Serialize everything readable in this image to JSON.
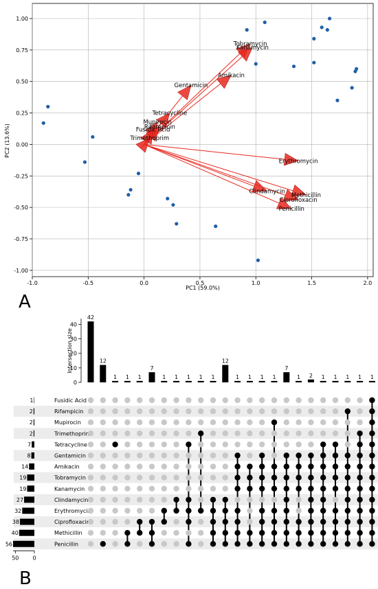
{
  "chart_data": [
    {
      "type": "scatter",
      "panel_label": "A",
      "xlabel": "PC1 (59.0%)",
      "ylabel": "PC2 (13.6%)",
      "xlim": [
        -1.0,
        2.05
      ],
      "ylim": [
        -1.05,
        1.12
      ],
      "xticks": [
        "-1.0",
        "-0.5",
        "0.0",
        "0.5",
        "1.0",
        "1.5",
        "2.0"
      ],
      "xtick_values": [
        -1.0,
        -0.5,
        0.0,
        0.5,
        1.0,
        1.5,
        2.0
      ],
      "yticks": [
        "-1.00",
        "-0.75",
        "-0.50",
        "-0.25",
        "0.00",
        "0.25",
        "0.50",
        "0.75",
        "1.00"
      ],
      "ytick_values": [
        -1.0,
        -0.75,
        -0.5,
        -0.25,
        0.0,
        0.25,
        0.5,
        0.75,
        1.0
      ],
      "grid": true,
      "point_color": "#1f5fa8",
      "arrow_color": "#e8281e",
      "points": [
        {
          "x": -0.9,
          "y": 0.17
        },
        {
          "x": -0.86,
          "y": 0.3
        },
        {
          "x": -0.53,
          "y": -0.14
        },
        {
          "x": -0.46,
          "y": 0.06
        },
        {
          "x": -0.14,
          "y": -0.4
        },
        {
          "x": -0.12,
          "y": -0.36
        },
        {
          "x": -0.05,
          "y": -0.23
        },
        {
          "x": 0.21,
          "y": -0.43
        },
        {
          "x": 0.26,
          "y": -0.48
        },
        {
          "x": 0.29,
          "y": -0.63
        },
        {
          "x": 0.64,
          "y": -0.65
        },
        {
          "x": 0.92,
          "y": 0.91
        },
        {
          "x": 1.0,
          "y": 0.64
        },
        {
          "x": 1.02,
          "y": -0.92
        },
        {
          "x": 1.08,
          "y": 0.97
        },
        {
          "x": 1.34,
          "y": 0.62
        },
        {
          "x": 1.52,
          "y": 0.84
        },
        {
          "x": 1.52,
          "y": 0.65
        },
        {
          "x": 1.59,
          "y": 0.93
        },
        {
          "x": 1.64,
          "y": 0.91
        },
        {
          "x": 1.66,
          "y": 1.0
        },
        {
          "x": 1.73,
          "y": 0.35
        },
        {
          "x": 1.86,
          "y": 0.45
        },
        {
          "x": 1.89,
          "y": 0.58
        },
        {
          "x": 1.9,
          "y": 0.6
        }
      ],
      "loadings": [
        {
          "name": "Tobramycin",
          "x": 0.95,
          "y": 0.8
        },
        {
          "name": "Kanamycin",
          "x": 0.97,
          "y": 0.77
        },
        {
          "name": "Amikacin",
          "x": 0.78,
          "y": 0.55
        },
        {
          "name": "Gentamicin",
          "x": 0.42,
          "y": 0.47
        },
        {
          "name": "Tetracycline",
          "x": 0.23,
          "y": 0.25
        },
        {
          "name": "Mupirocin",
          "x": 0.12,
          "y": 0.18
        },
        {
          "name": "Rifampicin",
          "x": 0.14,
          "y": 0.14
        },
        {
          "name": "Fusidic Acid",
          "x": 0.08,
          "y": 0.12
        },
        {
          "name": "Trimethoprim",
          "x": 0.05,
          "y": 0.05
        },
        {
          "name": "Erythromycin",
          "x": 1.38,
          "y": -0.13
        },
        {
          "name": "Clindamycin",
          "x": 1.1,
          "y": -0.37
        },
        {
          "name": "Methicillin",
          "x": 1.45,
          "y": -0.4
        },
        {
          "name": "Ciprofloxacin",
          "x": 1.38,
          "y": -0.44
        },
        {
          "name": "Penicillin",
          "x": 1.32,
          "y": -0.51
        }
      ]
    },
    {
      "type": "bar",
      "subtype": "upset",
      "panel_label": "B",
      "ylabel": "Intersection size",
      "yticks": [
        "0",
        "10",
        "20",
        "30",
        "40"
      ],
      "ytick_values": [
        0,
        10,
        20,
        30,
        40
      ],
      "ylim": [
        0,
        44
      ],
      "set_size_ticks": [
        "50",
        "0"
      ],
      "set_size_tick_values": [
        50,
        0
      ],
      "sets": [
        "Fusidic Acid",
        "Rifampicin",
        "Mupirocin",
        "Trimethoprim",
        "Tetracycline",
        "Gentamicin",
        "Amikacin",
        "Tobramycin",
        "Kanamycin",
        "Clindamycin",
        "Erythromycin",
        "Ciprofloxacin",
        "Methicillin",
        "Penicillin"
      ],
      "set_sizes": [
        1,
        2,
        2,
        2,
        7,
        8,
        14,
        19,
        19,
        27,
        32,
        38,
        40,
        56
      ],
      "intersection_sizes": [
        42,
        12,
        1,
        1,
        1,
        7,
        1,
        1,
        1,
        1,
        1,
        12,
        1,
        1,
        1,
        1,
        7,
        1,
        2,
        1,
        1,
        1,
        1,
        1
      ],
      "intersections": [
        [],
        [
          13
        ],
        [
          4
        ],
        [
          12,
          13
        ],
        [
          11,
          12
        ],
        [
          11,
          12,
          13
        ],
        [
          10,
          11
        ],
        [
          9,
          10
        ],
        [
          4,
          9,
          10,
          11,
          13
        ],
        [
          3,
          10
        ],
        [
          9,
          10,
          11,
          12,
          13
        ],
        [
          9,
          10,
          11,
          12,
          13
        ],
        [
          5,
          6,
          7,
          8,
          10,
          11,
          12,
          13
        ],
        [
          6,
          7,
          8,
          12,
          13
        ],
        [
          5,
          6,
          7,
          8,
          10,
          11,
          12,
          13
        ],
        [
          2,
          6,
          7,
          8,
          10,
          11,
          12,
          13
        ],
        [
          5,
          6,
          7,
          8,
          9,
          10,
          11,
          12,
          13
        ],
        [
          5,
          6,
          7,
          8,
          11,
          12,
          13
        ],
        [
          5,
          6,
          7,
          8,
          9,
          10,
          11,
          12,
          13
        ],
        [
          4,
          5,
          6,
          7,
          8,
          9,
          10,
          11,
          12,
          13
        ],
        [
          4,
          5,
          6,
          7,
          8,
          10,
          11,
          12,
          13
        ],
        [
          1,
          5,
          6,
          7,
          8,
          9,
          10,
          11,
          12,
          13
        ],
        [
          3,
          4,
          5,
          6,
          7,
          8,
          9,
          10,
          11,
          12,
          13
        ],
        [
          0,
          1,
          2,
          3,
          4,
          5,
          6,
          7,
          8,
          9,
          10,
          11,
          12,
          13
        ]
      ]
    }
  ]
}
